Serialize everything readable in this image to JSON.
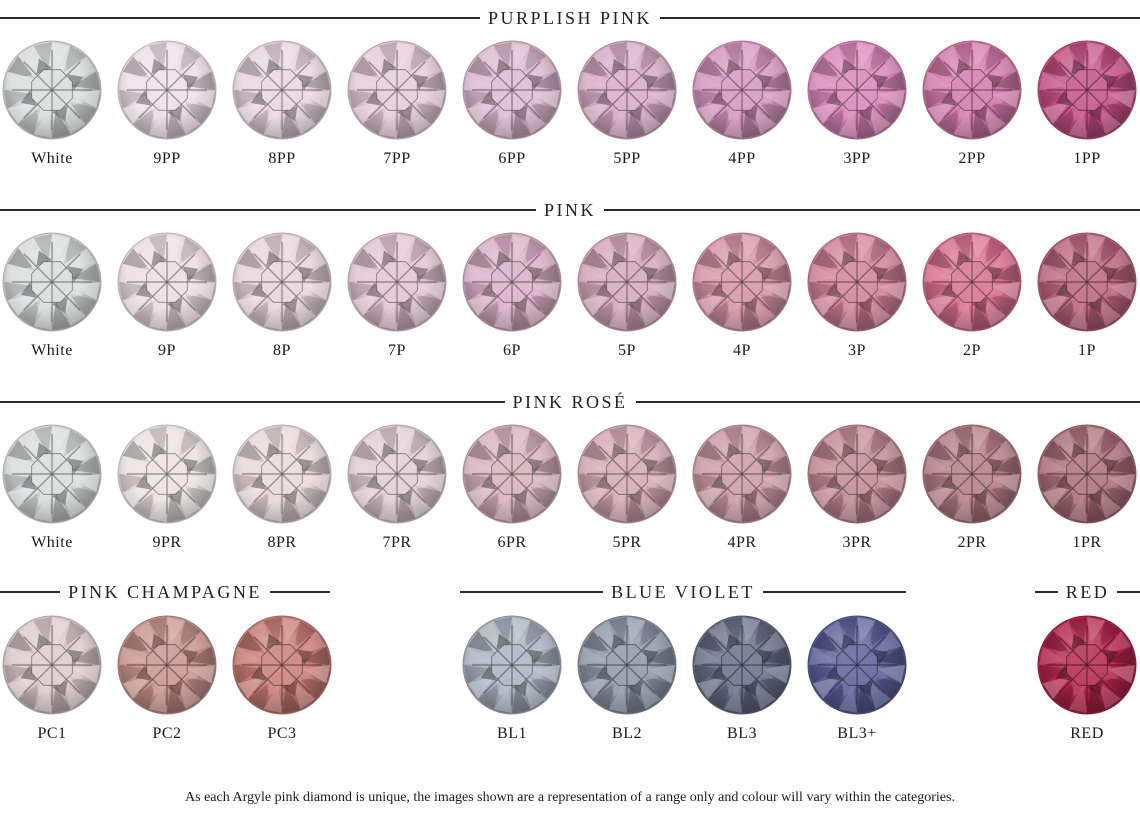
{
  "sections": [
    {
      "id": "purplish-pink",
      "title": "PURPLISH PINK",
      "items": [
        {
          "label": "White",
          "color": "#d9dcdc"
        },
        {
          "label": "9PP",
          "color": "#ecdfe6"
        },
        {
          "label": "8PP",
          "color": "#e8d6df"
        },
        {
          "label": "7PP",
          "color": "#e4cbd8"
        },
        {
          "label": "6PP",
          "color": "#dcbacd"
        },
        {
          "label": "5PP",
          "color": "#d6abc3"
        },
        {
          "label": "4PP",
          "color": "#d395bc"
        },
        {
          "label": "3PP",
          "color": "#d786b6"
        },
        {
          "label": "2PP",
          "color": "#d27aa9"
        },
        {
          "label": "1PP",
          "color": "#c2507f"
        }
      ]
    },
    {
      "id": "pink",
      "title": "PINK",
      "items": [
        {
          "label": "White",
          "color": "#d9dcdc"
        },
        {
          "label": "9P",
          "color": "#ecdde2"
        },
        {
          "label": "8P",
          "color": "#e7d4da"
        },
        {
          "label": "7P",
          "color": "#e0c4d1"
        },
        {
          "label": "6P",
          "color": "#d8b0c4"
        },
        {
          "label": "5P",
          "color": "#d4a7ba"
        },
        {
          "label": "4P",
          "color": "#d493a6"
        },
        {
          "label": "3P",
          "color": "#cf8198"
        },
        {
          "label": "2P",
          "color": "#d6708e"
        },
        {
          "label": "1P",
          "color": "#b9647b"
        }
      ]
    },
    {
      "id": "pink-rose",
      "title": "PINK ROSÉ",
      "items": [
        {
          "label": "White",
          "color": "#d9dcdc"
        },
        {
          "label": "9PR",
          "color": "#e9e2e2"
        },
        {
          "label": "8PR",
          "color": "#e8d8da"
        },
        {
          "label": "7PR",
          "color": "#dfcdd3"
        },
        {
          "label": "6PR",
          "color": "#d6b1bc"
        },
        {
          "label": "5PR",
          "color": "#d3a8b3"
        },
        {
          "label": "4PR",
          "color": "#c99aa4"
        },
        {
          "label": "3PR",
          "color": "#bf8893"
        },
        {
          "label": "2PR",
          "color": "#b17c84"
        },
        {
          "label": "1PR",
          "color": "#a96d78"
        }
      ]
    }
  ],
  "bottom_groups": [
    {
      "id": "pink-champagne",
      "title": "PINK CHAMPAGNE",
      "items": [
        {
          "label": "PC1",
          "color": "#dccacc"
        },
        {
          "label": "PC2",
          "color": "#c7938f"
        },
        {
          "label": "PC3",
          "color": "#c77c74"
        }
      ]
    },
    {
      "id": "blue-violet",
      "title": "BLUE VIOLET",
      "items": [
        {
          "label": "BL1",
          "color": "#a9b3bf"
        },
        {
          "label": "BL2",
          "color": "#8d96a6"
        },
        {
          "label": "BL3",
          "color": "#666c84"
        },
        {
          "label": "BL3+",
          "color": "#5a5f95"
        }
      ]
    },
    {
      "id": "red",
      "title": "RED",
      "items": [
        {
          "label": "RED",
          "color": "#b0244a"
        }
      ]
    }
  ],
  "footnote": "As each Argyle pink diamond is unique, the images shown are a representation of a range only and colour will vary within the categories."
}
